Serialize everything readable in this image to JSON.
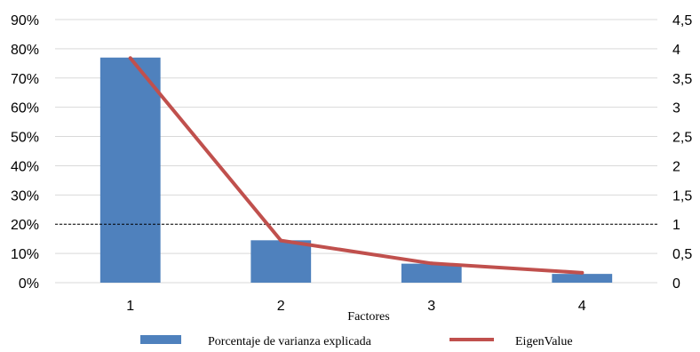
{
  "chart_data": {
    "type": "bar",
    "categories": [
      "1",
      "2",
      "3",
      "4"
    ],
    "xlabel": "Factores",
    "series": [
      {
        "name": "Porcentaje de varianza explicada",
        "type": "bar",
        "axis": "left",
        "color": "#4f81bd",
        "values": [
          0.77,
          0.145,
          0.065,
          0.03
        ]
      },
      {
        "name": "EigenValue",
        "type": "line",
        "axis": "right",
        "color": "#c0504d",
        "values": [
          3.84,
          0.72,
          0.33,
          0.17
        ]
      }
    ],
    "y_left": {
      "ylim": [
        0,
        0.9
      ],
      "ticks": [
        0,
        0.1,
        0.2,
        0.3,
        0.4,
        0.5,
        0.6,
        0.7,
        0.8,
        0.9
      ],
      "tick_labels": [
        "0%",
        "10%",
        "20%",
        "30%",
        "40%",
        "50%",
        "60%",
        "70%",
        "80%",
        "90%"
      ]
    },
    "y_right": {
      "ylim": [
        0,
        4.5
      ],
      "ticks": [
        0,
        0.5,
        1,
        1.5,
        2,
        2.5,
        3,
        3.5,
        4,
        4.5
      ],
      "tick_labels": [
        "0",
        "0,5",
        "1",
        "1,5",
        "2",
        "2,5",
        "3",
        "3,5",
        "4",
        "4,5"
      ]
    },
    "reference_line": {
      "axis": "right",
      "value": 1,
      "style": "dashed",
      "color": "#000000"
    },
    "grid": true,
    "grid_color": "#d9d9d9",
    "legend_position": "bottom"
  }
}
